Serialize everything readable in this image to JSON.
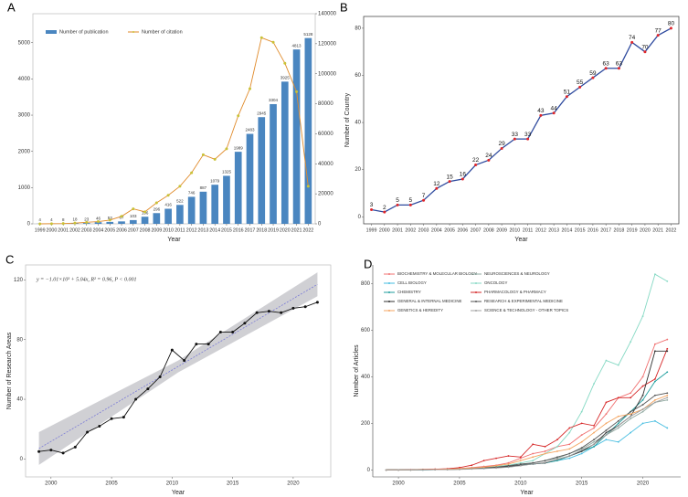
{
  "chart_data": [
    {
      "type": "combo",
      "panel": "A",
      "x_label": "Year",
      "grid": false,
      "legend": "top-left",
      "x": [
        1999,
        2000,
        2001,
        2002,
        2003,
        2004,
        2005,
        2006,
        2007,
        2008,
        2009,
        2010,
        2011,
        2012,
        2013,
        2014,
        2015,
        2016,
        2017,
        2018,
        2019,
        2020,
        2021,
        2022
      ],
      "xticks": [
        1999,
        2000,
        2001,
        2002,
        2003,
        2004,
        2005,
        2006,
        2007,
        2008,
        2009,
        2010,
        2011,
        2012,
        2013,
        2014,
        2015,
        2016,
        2017,
        2018,
        2019,
        2020,
        2021,
        2022
      ],
      "xlim": [
        1998.4,
        2022.6
      ],
      "ylim": [
        0,
        5800
      ],
      "yticks": [
        0,
        1000,
        2000,
        3000,
        4000,
        5000
      ],
      "y2lim": [
        0,
        140000
      ],
      "y2ticks": [
        0,
        20000,
        40000,
        60000,
        80000,
        100000,
        120000,
        140000
      ],
      "ycolor": "#4a86c0",
      "y2color": "#e08a2a",
      "series": [
        {
          "name": "Number of publication",
          "type": "bar",
          "color": "#4a86c0",
          "data_labels": true,
          "values": [
            4,
            4,
            8,
            18,
            23,
            46,
            53,
            67,
            103,
            196,
            296,
            416,
            522,
            746,
            887,
            1079,
            1325,
            1989,
            2483,
            2945,
            3304,
            3925,
            4813,
            5128
          ]
        },
        {
          "name": "Number of citation",
          "type": "line",
          "axis": "y2",
          "color": "#e08a2a",
          "marker_color": "#c9c236",
          "values": [
            0,
            100,
            200,
            500,
            1000,
            1500,
            2500,
            5000,
            10000,
            8000,
            14000,
            19000,
            25000,
            34000,
            46000,
            43000,
            50000,
            72000,
            90000,
            124000,
            121000,
            107000,
            88000,
            25000
          ]
        }
      ]
    },
    {
      "type": "line",
      "panel": "B",
      "x_label": "Year",
      "y_label": "Number of Country",
      "grid": false,
      "x": [
        1999,
        2000,
        2001,
        2002,
        2003,
        2004,
        2005,
        2006,
        2007,
        2008,
        2009,
        2010,
        2011,
        2012,
        2013,
        2014,
        2015,
        2016,
        2017,
        2018,
        2019,
        2020,
        2021,
        2022
      ],
      "xticks": [
        1999,
        2000,
        2001,
        2002,
        2003,
        2004,
        2005,
        2006,
        2007,
        2008,
        2009,
        2010,
        2011,
        2012,
        2013,
        2014,
        2015,
        2016,
        2017,
        2018,
        2019,
        2020,
        2021,
        2022
      ],
      "xlim": [
        1998.4,
        2022.6
      ],
      "ylim": [
        -3,
        85
      ],
      "yticks": [
        0,
        20,
        40,
        60,
        80
      ],
      "series": [
        {
          "name": "Number of Country",
          "color": "#2e4a9e",
          "marker_color": "#e0262a",
          "data_labels": true,
          "values": [
            3,
            2,
            5,
            5,
            7,
            12,
            15,
            16,
            22,
            24,
            29,
            33,
            33,
            43,
            44,
            51,
            55,
            59,
            63,
            63,
            74,
            70,
            77,
            80
          ]
        }
      ]
    },
    {
      "type": "line",
      "panel": "C",
      "x_label": "Year",
      "y_label": "Number of Research Areas",
      "grid": false,
      "annotation": "y = −1.01×10³ + 5.04x, R² = 0.96, P < 0.001",
      "x": [
        1999,
        2000,
        2001,
        2002,
        2003,
        2004,
        2005,
        2006,
        2007,
        2008,
        2009,
        2010,
        2011,
        2012,
        2013,
        2014,
        2015,
        2016,
        2017,
        2018,
        2019,
        2020,
        2021,
        2022
      ],
      "xticks": [
        2000,
        2005,
        2010,
        2015,
        2020
      ],
      "xlim": [
        1997.9,
        2023.1
      ],
      "ylim": [
        -12,
        130
      ],
      "yticks": [
        0,
        40,
        80,
        120
      ],
      "fit": {
        "x": [
          1999,
          2010.5,
          2022
        ],
        "values": [
          7,
          62,
          117
        ],
        "lower": [
          -4,
          58,
          109
        ],
        "upper": [
          18,
          66,
          125
        ],
        "color": "#7b7bd6"
      },
      "series": [
        {
          "name": "Number of Research Areas",
          "color": "#111111",
          "marker_color": "#111111",
          "values": [
            5,
            6,
            4,
            8,
            18,
            22,
            27,
            28,
            40,
            47,
            55,
            73,
            66,
            77,
            77,
            85,
            85,
            91,
            98,
            99,
            98,
            101,
            102,
            105
          ]
        }
      ]
    },
    {
      "type": "line",
      "panel": "D",
      "x_label": "Year",
      "y_label": "Number of Articles",
      "grid": false,
      "legend": "top-left",
      "x": [
        1999,
        2000,
        2001,
        2002,
        2003,
        2004,
        2005,
        2006,
        2007,
        2008,
        2009,
        2010,
        2011,
        2012,
        2013,
        2014,
        2015,
        2016,
        2017,
        2018,
        2019,
        2020,
        2021,
        2022
      ],
      "xticks": [
        2000,
        2005,
        2010,
        2015,
        2020
      ],
      "xlim": [
        1997.9,
        2023.1
      ],
      "ylim": [
        -30,
        880
      ],
      "yticks": [
        0,
        200,
        400,
        600,
        800
      ],
      "series": [
        {
          "name": "BIOCHEMISTRY & MOLECULAR BIOLOGY",
          "color": "#f07070",
          "values": [
            0,
            0,
            1,
            2,
            3,
            4,
            6,
            10,
            15,
            20,
            30,
            50,
            70,
            80,
            100,
            110,
            150,
            180,
            240,
            310,
            330,
            400,
            540,
            560
          ]
        },
        {
          "name": "NEUROSCIENCES & NEUROLOGY",
          "color": "#8fa8a0",
          "values": [
            0,
            0,
            0,
            0,
            1,
            2,
            3,
            5,
            8,
            10,
            15,
            20,
            30,
            40,
            50,
            70,
            90,
            120,
            150,
            180,
            220,
            250,
            290,
            300
          ]
        },
        {
          "name": "CELL BIOLOGY",
          "color": "#46bde0",
          "values": [
            0,
            0,
            0,
            0,
            1,
            2,
            3,
            5,
            6,
            10,
            15,
            20,
            25,
            30,
            40,
            50,
            70,
            100,
            130,
            120,
            160,
            200,
            210,
            180
          ]
        },
        {
          "name": "ONCOLOGY",
          "color": "#86d9c4",
          "values": [
            0,
            0,
            0,
            1,
            2,
            3,
            5,
            8,
            10,
            15,
            20,
            30,
            40,
            70,
            100,
            160,
            250,
            370,
            470,
            450,
            550,
            660,
            840,
            810
          ]
        },
        {
          "name": "CHEMISTRY",
          "color": "#1f9e9e",
          "values": [
            0,
            0,
            0,
            0,
            1,
            2,
            3,
            5,
            8,
            10,
            12,
            20,
            25,
            30,
            40,
            60,
            80,
            100,
            150,
            200,
            250,
            300,
            380,
            420
          ]
        },
        {
          "name": "PHARMACOLOGY & PHARMACY",
          "color": "#d62728",
          "values": [
            0,
            0,
            1,
            2,
            3,
            5,
            10,
            20,
            40,
            50,
            60,
            55,
            110,
            100,
            130,
            180,
            200,
            190,
            290,
            310,
            310,
            360,
            390,
            520
          ]
        },
        {
          "name": "GENERAL & INTERNAL MEDICINE",
          "color": "#333333",
          "values": [
            0,
            0,
            0,
            1,
            1,
            2,
            3,
            5,
            8,
            10,
            15,
            20,
            25,
            30,
            45,
            60,
            80,
            110,
            160,
            190,
            230,
            320,
            510,
            510
          ]
        },
        {
          "name": "RESEARCH & EXPERIMENTAL MEDICINE",
          "color": "#555555",
          "values": [
            0,
            0,
            0,
            1,
            1,
            2,
            4,
            6,
            9,
            12,
            18,
            25,
            30,
            40,
            55,
            70,
            95,
            130,
            170,
            210,
            250,
            280,
            320,
            330
          ]
        },
        {
          "name": "GENETICS & HEREDITY",
          "color": "#f4a460",
          "values": [
            0,
            0,
            0,
            1,
            2,
            3,
            5,
            8,
            12,
            18,
            25,
            40,
            55,
            70,
            80,
            90,
            120,
            160,
            200,
            230,
            240,
            260,
            300,
            320
          ]
        },
        {
          "name": "SCIENCE & TECHNOLOGY - OTHER TOPICS",
          "color": "#a0a0a0",
          "values": [
            0,
            0,
            0,
            0,
            1,
            1,
            2,
            4,
            6,
            8,
            12,
            18,
            25,
            32,
            45,
            60,
            85,
            110,
            150,
            190,
            230,
            260,
            290,
            310
          ]
        }
      ]
    }
  ]
}
